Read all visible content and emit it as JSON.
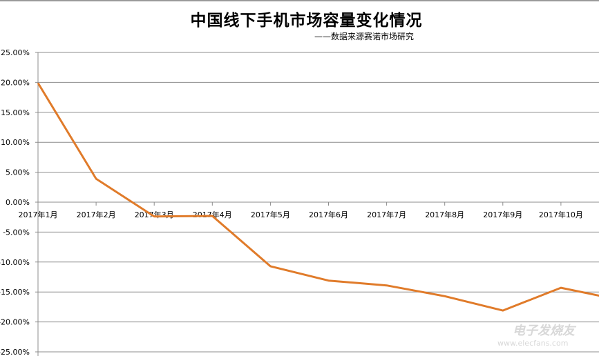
{
  "chart_data": {
    "type": "line",
    "title": "中国线下手机市场容量变化情况",
    "subtitle": "——数据来源赛诺市场研究",
    "categories": [
      "2017年1月",
      "2017年2月",
      "2017年3月",
      "2017年4月",
      "2017年5月",
      "2017年6月",
      "2017年7月",
      "2017年8月",
      "2017年9月",
      "2017年10月"
    ],
    "series": [
      {
        "values": [
          19.9,
          3.9,
          -2.4,
          -2.3,
          -10.7,
          -13.1,
          -13.9,
          -15.7,
          -18.1,
          -14.3
        ],
        "trailing_value": -16.3,
        "color": "#e07b2a"
      }
    ],
    "ylim": [
      -25,
      25
    ],
    "ytick_step": 5,
    "ytick_labels": [
      "25.00%",
      "20.00%",
      "15.00%",
      "10.00%",
      "5.00%",
      "0.00%",
      "-5.00%",
      "-10.00%",
      "-15.00%",
      "-20.00%",
      "-25.00%"
    ],
    "grid": true,
    "grid_color": "#8c8c8c",
    "legend": "none"
  },
  "watermark": {
    "name": "电子发烧友",
    "url": "www.elecfans.com"
  }
}
